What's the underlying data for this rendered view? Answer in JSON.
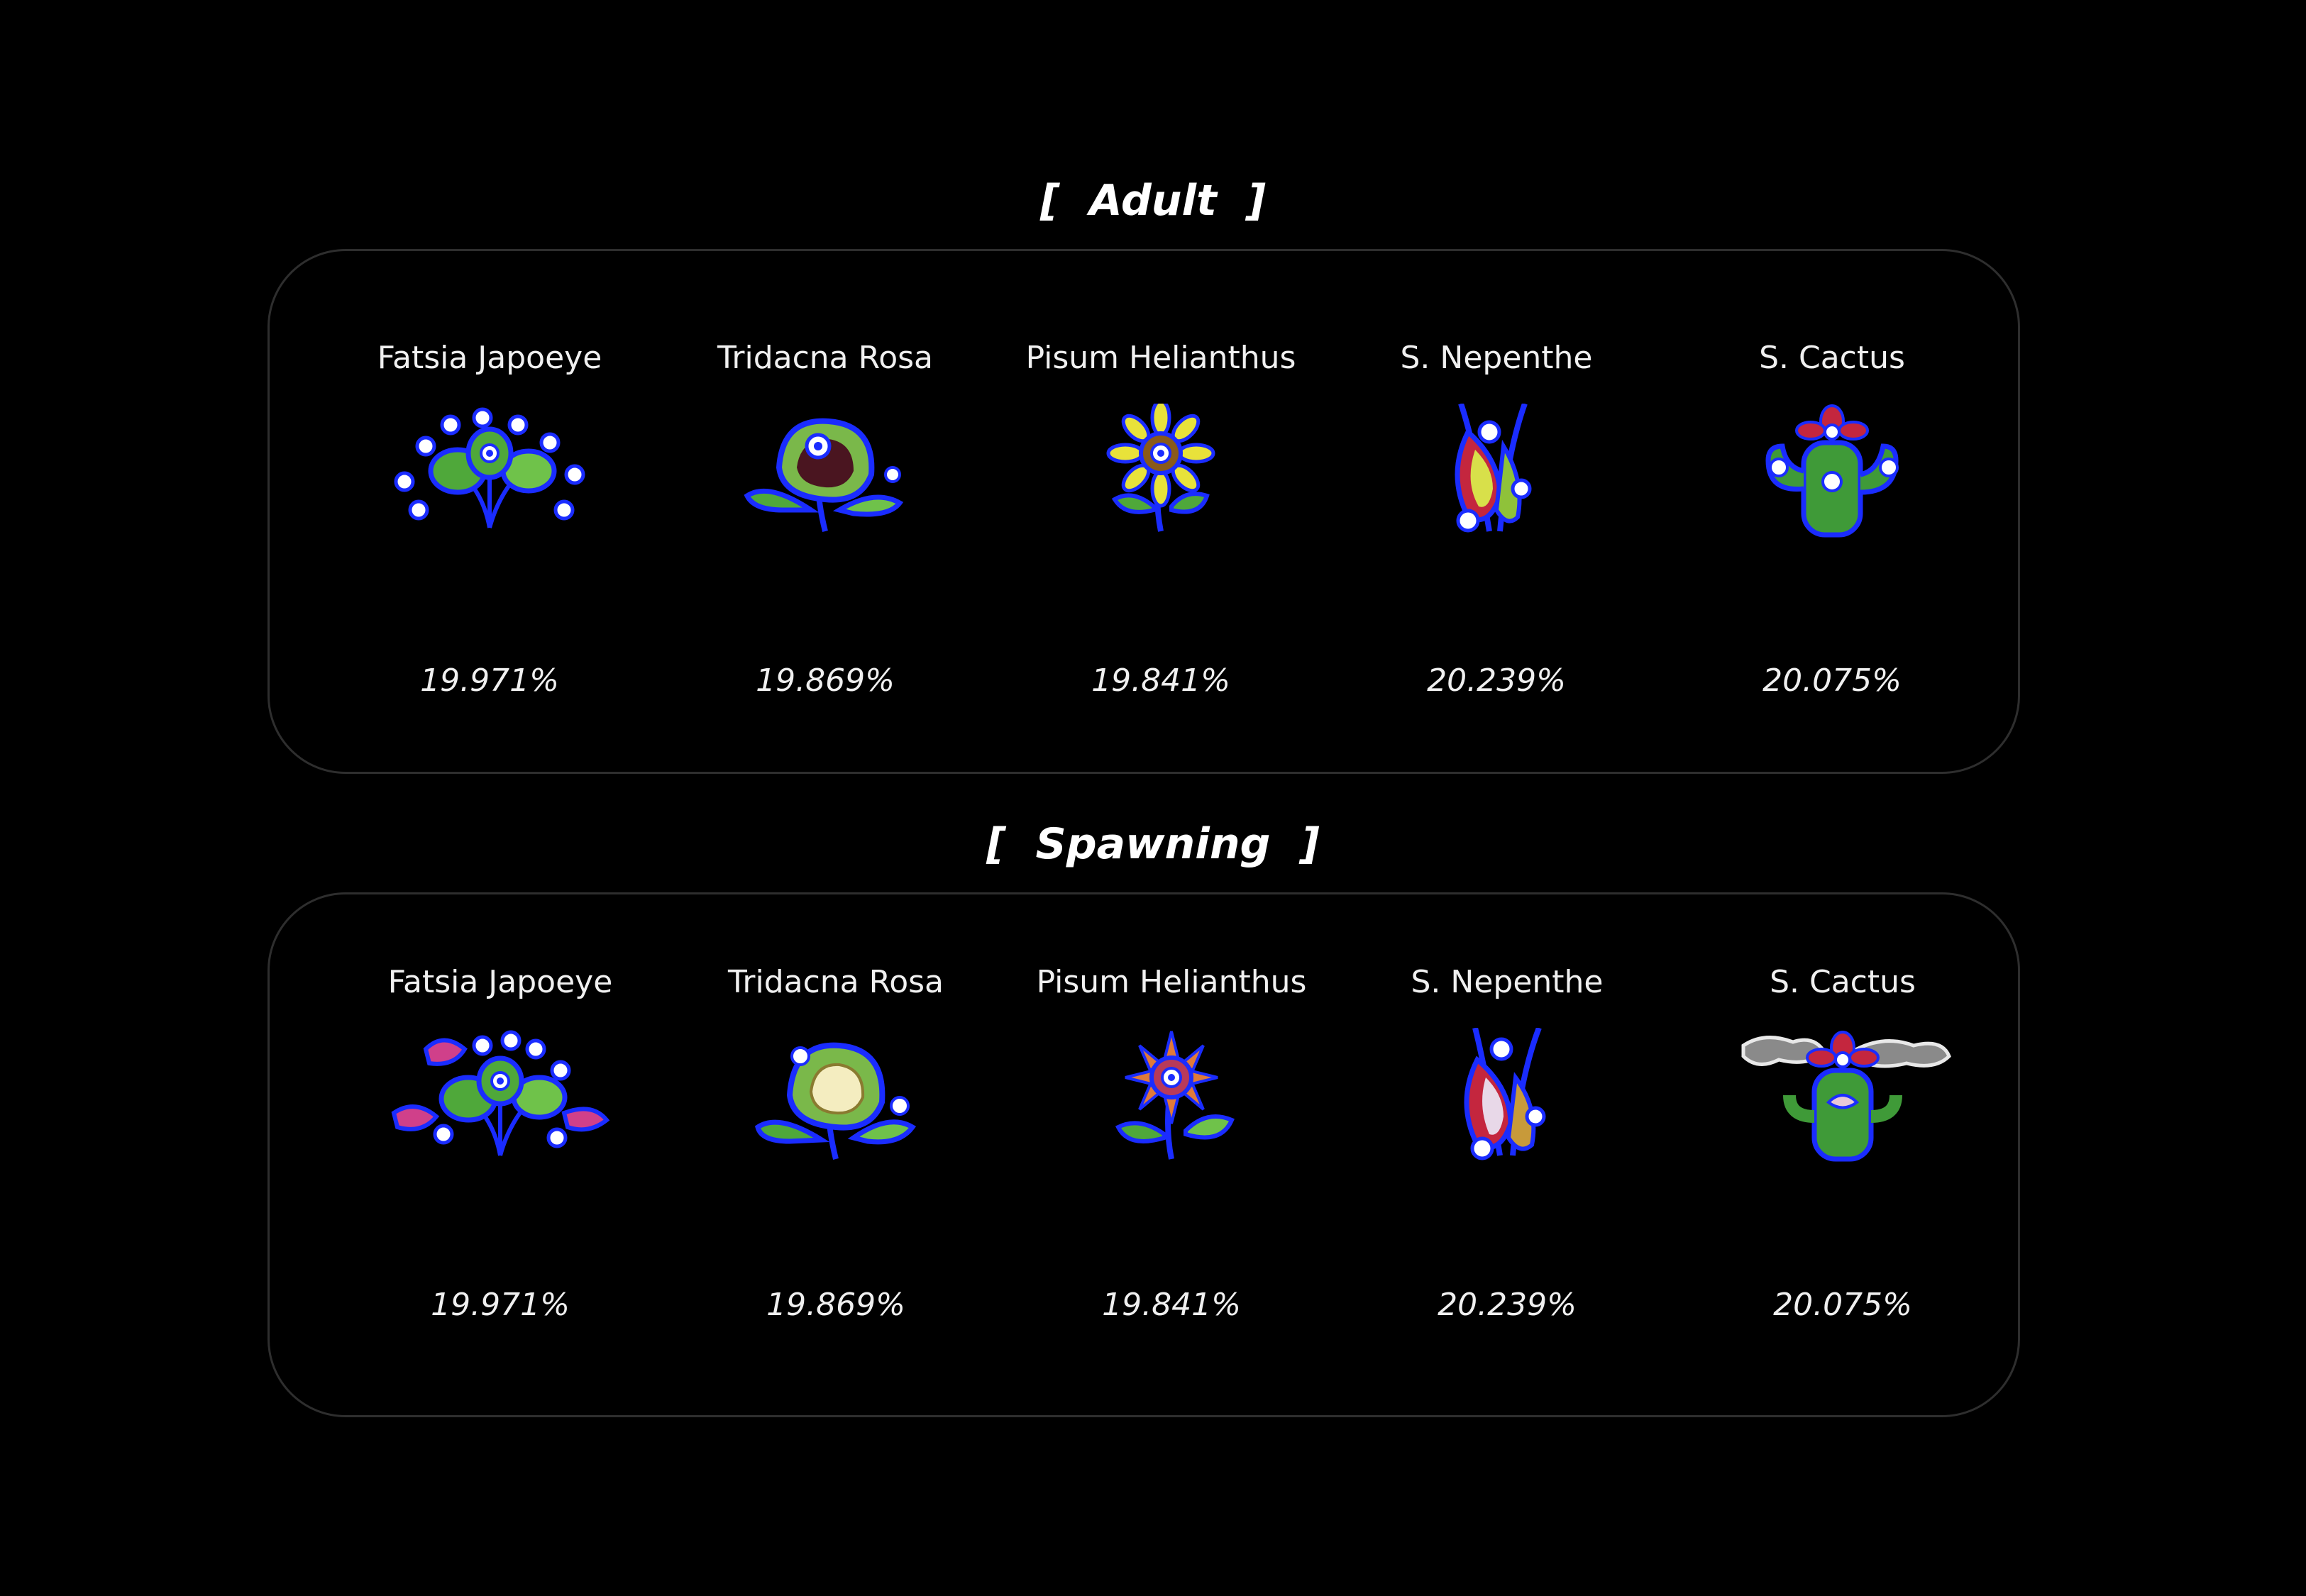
{
  "sections": [
    {
      "title": "[  Adult  ]",
      "items": [
        {
          "name": "Fatsia Japoeye",
          "percent": "19.971%",
          "icon": "fatsia-japoeye-icon"
        },
        {
          "name": "Tridacna Rosa",
          "percent": "19.869%",
          "icon": "tridacna-rosa-icon"
        },
        {
          "name": "Pisum Helianthus",
          "percent": "19.841%",
          "icon": "pisum-helianthus-icon"
        },
        {
          "name": "S. Nepenthe",
          "percent": "20.239%",
          "icon": "s-nepenthe-icon"
        },
        {
          "name": "S. Cactus",
          "percent": "20.075%",
          "icon": "s-cactus-icon"
        }
      ]
    },
    {
      "title": "[  Spawning  ]",
      "items": [
        {
          "name": "Fatsia Japoeye",
          "percent": "19.971%",
          "icon": "fatsia-japoeye-spawning-icon"
        },
        {
          "name": "Tridacna Rosa",
          "percent": "19.869%",
          "icon": "tridacna-rosa-spawning-icon"
        },
        {
          "name": "Pisum Helianthus",
          "percent": "19.841%",
          "icon": "pisum-helianthus-spawning-icon"
        },
        {
          "name": "S. Nepenthe",
          "percent": "20.239%",
          "icon": "s-nepenthe-spawning-icon"
        },
        {
          "name": "S. Cactus",
          "percent": "20.075%",
          "icon": "s-cactus-spawning-icon"
        }
      ]
    }
  ],
  "colors": {
    "background": "#000000",
    "panel_border": "#2e2e2e",
    "text": "#f0f0f0",
    "plant_outline": "#1a2cff",
    "plant_green": "#4fa83a",
    "plant_yellow": "#e8e23a",
    "plant_red": "#c4263e"
  }
}
